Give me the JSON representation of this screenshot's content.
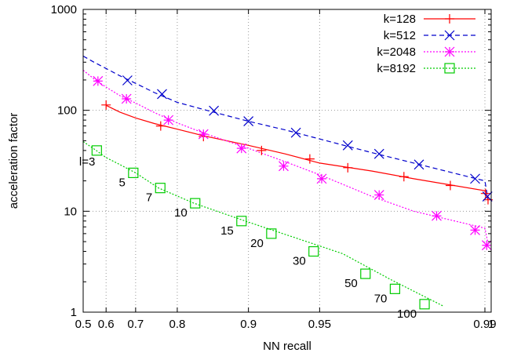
{
  "chart_data": {
    "type": "line",
    "title": "",
    "xlabel": "NN recall",
    "ylabel": "acceleration factor",
    "x_scale": "reverse-log (-log(1 - recall))",
    "y_scale": "log",
    "xlim": [
      0.5,
      1
    ],
    "ylim": [
      1,
      1000
    ],
    "grid": true,
    "legend_position": "top-right",
    "x_ticks": [
      {
        "value": 0.5,
        "label": "0.5"
      },
      {
        "value": 0.6,
        "label": "0.6"
      },
      {
        "value": 0.7,
        "label": "0.7"
      },
      {
        "value": 0.8,
        "label": "0.8"
      },
      {
        "value": 0.9,
        "label": "0.9"
      },
      {
        "value": 0.95,
        "label": "0.95"
      },
      {
        "value": 0.99,
        "label": "0.99"
      },
      {
        "value": 1,
        "label": "1"
      }
    ],
    "y_ticks": [
      {
        "value": 1,
        "label": "1"
      },
      {
        "value": 10,
        "label": "10"
      },
      {
        "value": 100,
        "label": "100"
      },
      {
        "value": 1000,
        "label": "1000"
      }
    ],
    "series": [
      {
        "name": "k=128",
        "color": "#ff0000",
        "marker": "plus",
        "dash": "solid",
        "line_x": [
          0.6,
          0.65,
          0.7,
          0.75,
          0.8,
          0.85,
          0.9,
          0.93,
          0.95,
          0.97,
          0.98,
          0.99,
          0.995
        ],
        "line_y": [
          112,
          96,
          84,
          74,
          65,
          55,
          45,
          37,
          30,
          25,
          21,
          16,
          13
        ],
        "points": [
          {
            "x": 0.6,
            "y": 113
          },
          {
            "x": 0.765,
            "y": 70
          },
          {
            "x": 0.845,
            "y": 55
          },
          {
            "x": 0.912,
            "y": 40
          },
          {
            "x": 0.945,
            "y": 33
          },
          {
            "x": 0.962,
            "y": 27
          },
          {
            "x": 0.978,
            "y": 22
          },
          {
            "x": 0.986,
            "y": 18
          },
          {
            "x": 0.991,
            "y": 15
          },
          {
            "x": 0.995,
            "y": 13
          }
        ]
      },
      {
        "name": "k=512",
        "color": "#0000cc",
        "marker": "cross",
        "dash": "dashed",
        "line_x": [
          0.5,
          0.55,
          0.6,
          0.65,
          0.7,
          0.75,
          0.8,
          0.85,
          0.9,
          0.93,
          0.95,
          0.97,
          0.98,
          0.99,
          0.995
        ],
        "line_y": [
          345,
          300,
          260,
          220,
          185,
          150,
          120,
          100,
          78,
          64,
          52,
          38,
          30,
          20,
          13
        ],
        "points": [
          {
            "x": 0.675,
            "y": 198
          },
          {
            "x": 0.768,
            "y": 145
          },
          {
            "x": 0.86,
            "y": 99
          },
          {
            "x": 0.9,
            "y": 78
          },
          {
            "x": 0.937,
            "y": 60
          },
          {
            "x": 0.962,
            "y": 45
          },
          {
            "x": 0.972,
            "y": 37
          },
          {
            "x": 0.981,
            "y": 29
          },
          {
            "x": 0.989,
            "y": 21
          },
          {
            "x": 0.994,
            "y": 14
          }
        ]
      },
      {
        "name": "k=2048",
        "color": "#ff00ff",
        "marker": "star",
        "dash": "dotted",
        "line_x": [
          0.5,
          0.55,
          0.6,
          0.65,
          0.7,
          0.75,
          0.8,
          0.85,
          0.9,
          0.93,
          0.95,
          0.97,
          0.98,
          0.99,
          0.995
        ],
        "line_y": [
          250,
          205,
          170,
          140,
          118,
          95,
          75,
          58,
          42,
          31,
          23,
          14,
          10,
          6.8,
          4.8
        ],
        "points": [
          {
            "x": 0.567,
            "y": 195
          },
          {
            "x": 0.672,
            "y": 130
          },
          {
            "x": 0.782,
            "y": 80
          },
          {
            "x": 0.845,
            "y": 58
          },
          {
            "x": 0.893,
            "y": 42
          },
          {
            "x": 0.929,
            "y": 28
          },
          {
            "x": 0.951,
            "y": 21
          },
          {
            "x": 0.972,
            "y": 14.5
          },
          {
            "x": 0.984,
            "y": 9
          },
          {
            "x": 0.989,
            "y": 6.5
          },
          {
            "x": 0.993,
            "y": 4.6
          }
        ]
      },
      {
        "name": "k=8192",
        "color": "#00cc00",
        "marker": "square",
        "dash": "dotted",
        "line_x": [
          0.5,
          0.56,
          0.6,
          0.65,
          0.7,
          0.76,
          0.83,
          0.9,
          0.93,
          0.96,
          0.975,
          0.985
        ],
        "line_y": [
          49,
          40,
          34,
          29,
          24,
          17,
          12,
          7.8,
          5.9,
          3.8,
          2.1,
          1.15
        ],
        "points": [
          {
            "x": 0.562,
            "y": 40,
            "label": "l=3"
          },
          {
            "x": 0.693,
            "y": 24,
            "label": "5"
          },
          {
            "x": 0.764,
            "y": 17,
            "label": "7"
          },
          {
            "x": 0.832,
            "y": 12,
            "label": "10"
          },
          {
            "x": 0.893,
            "y": 8,
            "label": "15"
          },
          {
            "x": 0.92,
            "y": 6,
            "label": "20"
          },
          {
            "x": 0.947,
            "y": 4,
            "label": "30"
          },
          {
            "x": 0.968,
            "y": 2.4,
            "label": "50"
          },
          {
            "x": 0.976,
            "y": 1.7,
            "label": "70"
          },
          {
            "x": 0.982,
            "y": 1.2,
            "label": "100"
          }
        ]
      }
    ]
  }
}
